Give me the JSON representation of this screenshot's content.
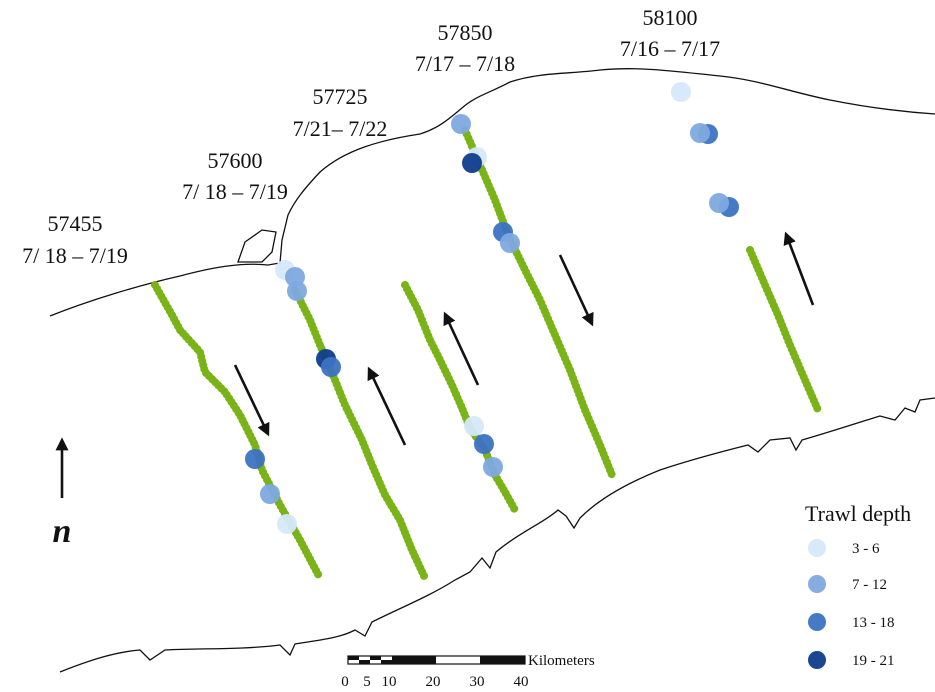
{
  "transects": [
    {
      "id": "57455",
      "dates": "7/ 18 – 7/19"
    },
    {
      "id": "57600",
      "dates": "7/ 18 – 7/19"
    },
    {
      "id": "57725",
      "dates": "7/21– 7/22"
    },
    {
      "id": "57850",
      "dates": "7/17 – 7/18"
    },
    {
      "id": "58100",
      "dates": "7/16 – 7/17"
    }
  ],
  "legend": {
    "title": "Trawl depth",
    "items": [
      {
        "label": "3 - 6",
        "color": "#d6e8fa"
      },
      {
        "label": "7 - 12",
        "color": "#7fa9df"
      },
      {
        "label": "13 - 18",
        "color": "#3d73c2"
      },
      {
        "label": "19 - 21",
        "color": "#0f3d8c"
      }
    ]
  },
  "scale_bar": {
    "unit": "Kilometers",
    "ticks": [
      "0",
      "5",
      "10",
      "20",
      "30",
      "40"
    ]
  },
  "north_label": "n"
}
